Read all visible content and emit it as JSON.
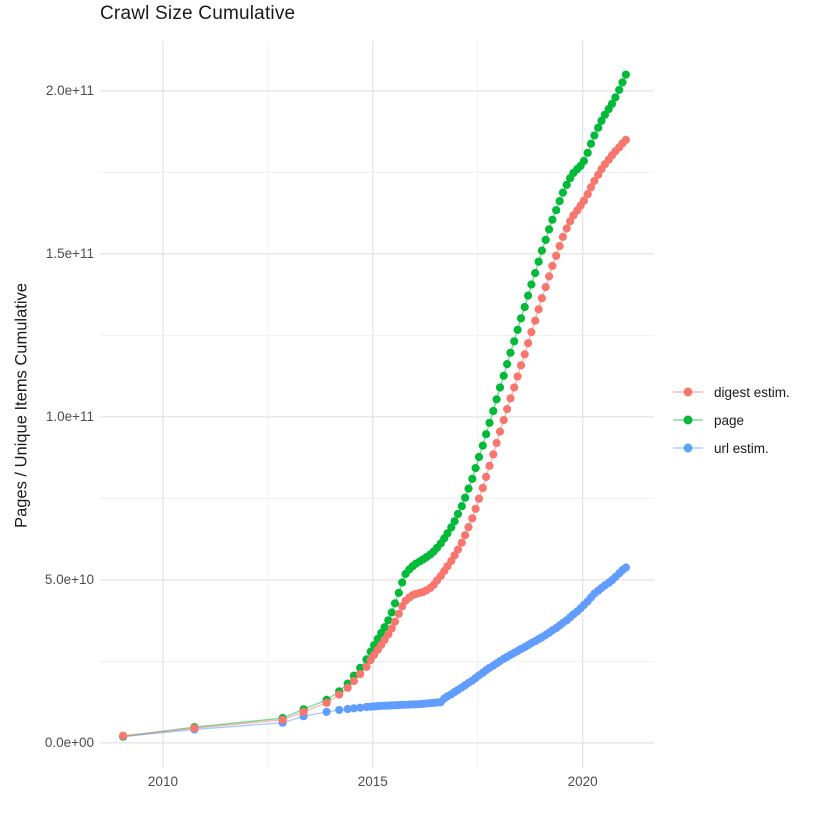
{
  "chart_data": {
    "type": "line",
    "title": "Crawl Size Cumulative",
    "xlabel": "",
    "ylabel": "Pages / Unique Items Cumulative",
    "values_unit": "pages, values in units of 1e9 (billions)",
    "grid": "on",
    "legend_position": "right-center",
    "background": "#ffffff",
    "major_grid_color": "#e4e4e4",
    "minor_grid_color": "#f1f1f1",
    "axis_text_color": "#4d4d4d",
    "xlim": [
      2008.5,
      2021.7
    ],
    "ylim": [
      -7.7,
      215.3
    ],
    "x_ticks": [
      {
        "value": 2010,
        "label": "2010"
      },
      {
        "value": 2015,
        "label": "2015"
      },
      {
        "value": 2020,
        "label": "2020"
      }
    ],
    "x_minor_ticks": [
      2012.5,
      2017.5
    ],
    "y_ticks": [
      {
        "value": 0,
        "label": "0.0e+00"
      },
      {
        "value": 50,
        "label": "5.0e+10"
      },
      {
        "value": 100,
        "label": "1.0e+11"
      },
      {
        "value": 150,
        "label": "1.5e+11"
      },
      {
        "value": 200,
        "label": "2.0e+11"
      }
    ],
    "y_minor_ticks": [
      25,
      75,
      125,
      175
    ],
    "x": [
      2009.05,
      2010.75,
      2012.85,
      2013.35,
      2013.9,
      2014.2,
      2014.4,
      2014.55,
      2014.7,
      2014.85,
      2014.95,
      2015.03,
      2015.12,
      2015.2,
      2015.28,
      2015.37,
      2015.45,
      2015.53,
      2015.62,
      2015.7,
      2015.78,
      2015.87,
      2015.95,
      2016.03,
      2016.12,
      2016.2,
      2016.28,
      2016.37,
      2016.45,
      2016.53,
      2016.62,
      2016.7,
      2016.78,
      2016.87,
      2016.95,
      2017.03,
      2017.12,
      2017.2,
      2017.28,
      2017.37,
      2017.45,
      2017.53,
      2017.62,
      2017.7,
      2017.78,
      2017.87,
      2017.95,
      2018.03,
      2018.12,
      2018.2,
      2018.28,
      2018.37,
      2018.45,
      2018.53,
      2018.62,
      2018.7,
      2018.78,
      2018.87,
      2018.95,
      2019.03,
      2019.12,
      2019.2,
      2019.28,
      2019.37,
      2019.45,
      2019.53,
      2019.62,
      2019.7,
      2019.78,
      2019.87,
      2019.95,
      2020.03,
      2020.12,
      2020.2,
      2020.28,
      2020.37,
      2020.45,
      2020.53,
      2020.62,
      2020.7,
      2020.78,
      2020.87,
      2020.95,
      2021.03
    ],
    "series": [
      {
        "name": "digest estim.",
        "color": "#F8766D",
        "values": [
          2.2,
          4.5,
          7.1,
          9.5,
          12.3,
          14.8,
          16.9,
          19.0,
          21.1,
          23.3,
          25.4,
          27.0,
          28.6,
          30.1,
          31.6,
          33.3,
          35.1,
          37.2,
          39.6,
          41.9,
          43.6,
          44.6,
          45.3,
          45.7,
          46.0,
          46.3,
          46.8,
          47.5,
          48.5,
          49.8,
          51.2,
          52.7,
          54.2,
          55.8,
          57.5,
          59.3,
          61.4,
          63.7,
          66.2,
          68.9,
          71.8,
          74.9,
          78.2,
          81.6,
          85.0,
          88.5,
          92.0,
          95.5,
          99.0,
          102.4,
          105.7,
          109.0,
          112.4,
          115.8,
          119.2,
          122.6,
          126.0,
          129.5,
          133.0,
          136.4,
          139.8,
          143.1,
          146.3,
          149.4,
          152.4,
          155.2,
          157.8,
          160.0,
          161.8,
          163.3,
          164.8,
          166.3,
          168.3,
          170.4,
          172.4,
          174.3,
          176.0,
          177.5,
          178.9,
          180.2,
          181.5,
          182.7,
          183.9,
          185.0
        ]
      },
      {
        "name": "page",
        "color": "#00BA38",
        "values": [
          2.0,
          4.8,
          7.6,
          10.3,
          13.2,
          15.8,
          18.2,
          20.6,
          23.0,
          25.6,
          28.0,
          30.0,
          31.9,
          33.7,
          35.5,
          37.6,
          40.0,
          42.8,
          46.0,
          49.2,
          51.8,
          53.2,
          54.2,
          55.0,
          55.7,
          56.3,
          57.0,
          57.8,
          58.7,
          59.8,
          61.2,
          62.7,
          64.3,
          66.1,
          68.0,
          70.2,
          72.6,
          75.2,
          78.0,
          81.0,
          84.3,
          87.7,
          91.2,
          94.7,
          98.2,
          101.8,
          105.4,
          109.0,
          112.6,
          116.2,
          119.7,
          123.2,
          126.7,
          130.2,
          133.7,
          137.2,
          140.6,
          144.1,
          147.6,
          151.0,
          154.3,
          157.5,
          160.5,
          163.4,
          166.2,
          168.8,
          171.2,
          173.2,
          174.8,
          176.0,
          177.0,
          178.5,
          181.0,
          183.8,
          186.3,
          188.7,
          190.8,
          192.7,
          194.4,
          196.0,
          198.0,
          200.3,
          202.6,
          205.0
        ]
      },
      {
        "name": "url estim.",
        "color": "#619CFF",
        "values": [
          1.9,
          4.1,
          6.2,
          8.2,
          9.5,
          10.1,
          10.4,
          10.6,
          10.8,
          11.0,
          11.1,
          11.2,
          11.3,
          11.35,
          11.4,
          11.45,
          11.5,
          11.55,
          11.6,
          11.65,
          11.7,
          11.75,
          11.8,
          11.85,
          11.9,
          12.0,
          12.1,
          12.2,
          12.3,
          12.4,
          12.5,
          13.6,
          14.3,
          14.9,
          15.6,
          16.3,
          17.0,
          17.7,
          18.4,
          19.1,
          19.9,
          20.7,
          21.5,
          22.3,
          23.0,
          23.7,
          24.4,
          25.1,
          25.8,
          26.4,
          27.0,
          27.6,
          28.2,
          28.8,
          29.4,
          30.0,
          30.6,
          31.2,
          31.8,
          32.4,
          33.1,
          33.8,
          34.5,
          35.2,
          36.0,
          36.8,
          37.6,
          38.5,
          39.4,
          40.3,
          41.3,
          42.3,
          43.4,
          44.6,
          45.8,
          46.7,
          47.5,
          48.3,
          49.1,
          49.9,
          50.9,
          52.0,
          53.0,
          53.8
        ]
      }
    ],
    "draw_order": [
      2,
      1,
      0
    ]
  }
}
